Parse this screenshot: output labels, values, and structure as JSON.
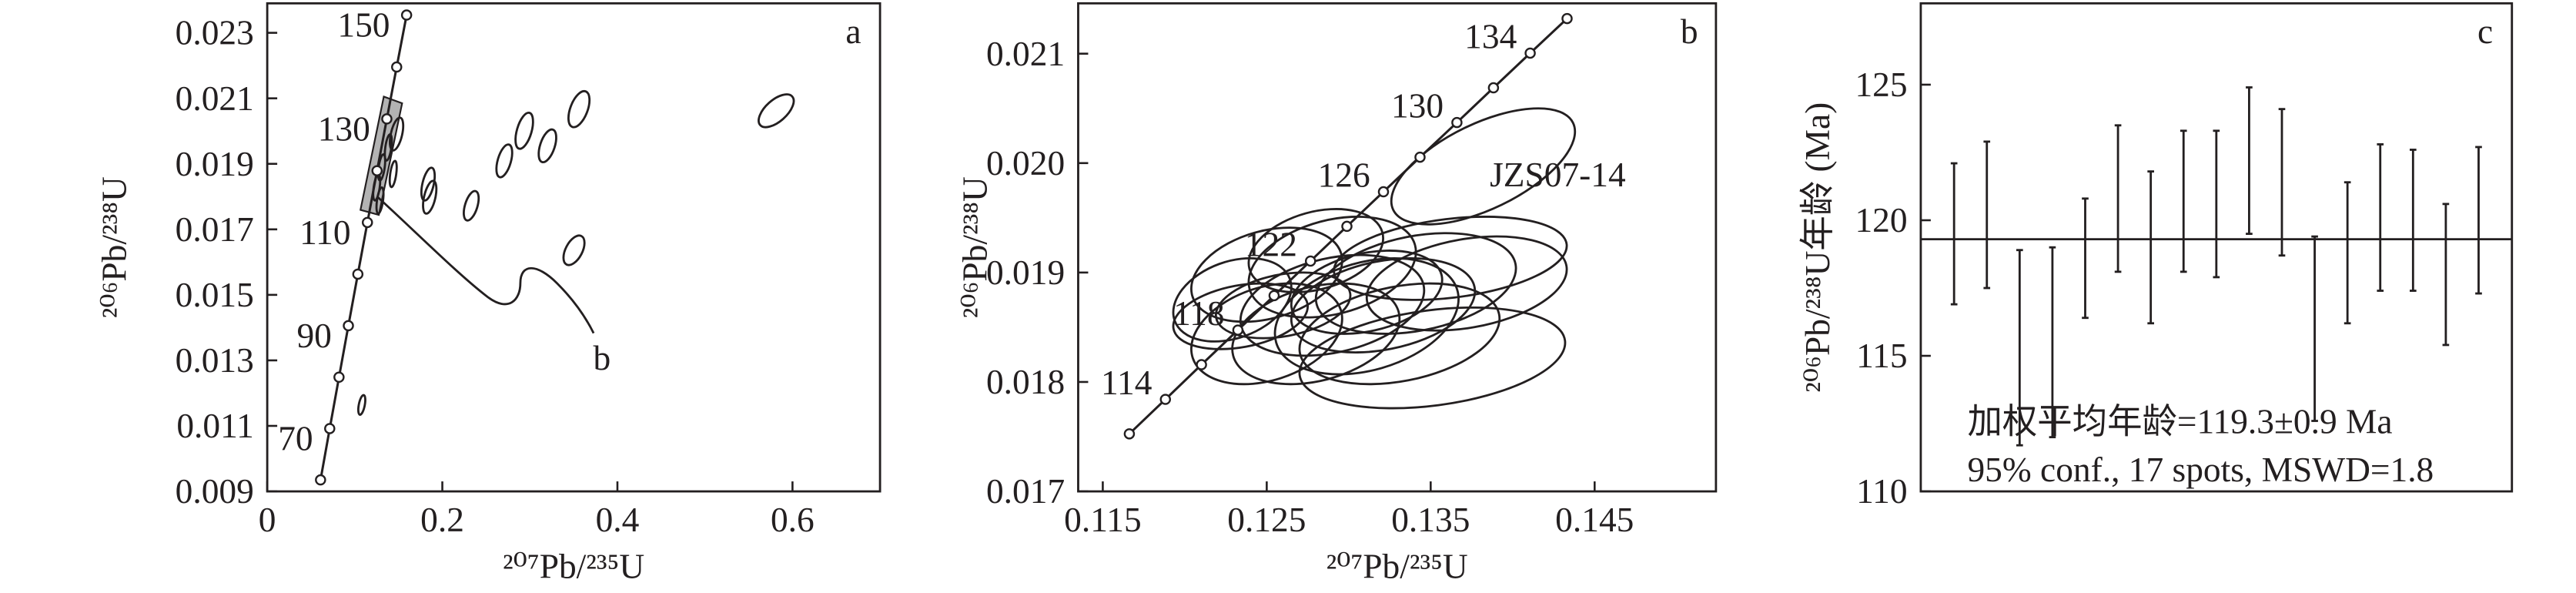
{
  "chart_data": [
    {
      "type": "concordia",
      "panel_label": "a",
      "annotation": "b",
      "xlabel": "²⁰⁷Pb/²³⁵U",
      "ylabel": "²⁰⁶Pb/²³⁸U",
      "xlim": [
        0,
        0.7
      ],
      "xticks": [
        0,
        0.2,
        0.4,
        0.6
      ],
      "ylim": [
        0.009,
        0.0239
      ],
      "yticks": [
        0.009,
        0.011,
        0.013,
        0.015,
        0.017,
        0.019,
        0.021,
        0.023
      ],
      "concordia": {
        "ages": [
          null,
          70,
          null,
          90,
          null,
          110,
          null,
          130,
          null,
          150
        ],
        "x": [
          0.06087,
          0.07137,
          0.08198,
          0.09268,
          0.1035,
          0.11442,
          0.12545,
          0.1366,
          0.14784,
          0.15919
        ],
        "values": [
          0.009351,
          0.010918,
          0.012487,
          0.014059,
          0.015633,
          0.01721,
          0.018789,
          0.020371,
          0.021955,
          0.023542
        ]
      },
      "ellipses": {
        "x": [
          0.125,
          0.1307,
          0.1383,
          0.1288,
          0.1439,
          0.1477,
          0.1837,
          0.1856,
          0.233,
          0.2708,
          0.2936,
          0.3201,
          0.3561,
          0.3504,
          0.5814,
          0.108
        ],
        "values": [
          0.01828,
          0.01889,
          0.0195,
          0.01788,
          0.01869,
          0.01991,
          0.01838,
          0.01798,
          0.01772,
          0.01909,
          0.02001,
          0.01955,
          0.02067,
          0.01636,
          0.02062,
          0.01164
        ],
        "x_err": [
          0.004,
          0.004,
          0.004,
          0.004,
          0.004,
          0.0076,
          0.0076,
          0.0076,
          0.0085,
          0.009,
          0.01,
          0.01,
          0.012,
          0.012,
          0.02,
          0.004
        ],
        "y_err": [
          0.0004,
          0.0004,
          0.0004,
          0.0004,
          0.0004,
          0.0005,
          0.0005,
          0.0005,
          0.00045,
          0.0005,
          0.00055,
          0.0005,
          0.00055,
          0.00045,
          0.0005,
          0.0003
        ],
        "rho": [
          0.5,
          0.5,
          0.5,
          0.5,
          0.5,
          0.5,
          0.5,
          0.5,
          0.5,
          0.5,
          0.5,
          0.5,
          0.5,
          0.5,
          0.6,
          0.5
        ]
      }
    },
    {
      "type": "concordia",
      "panel_label": "b",
      "sample_label": "JZS07-14",
      "xlabel": "²⁰⁷Pb/²³⁵U",
      "ylabel": "²⁰⁶Pb/²³⁸U",
      "xlim": [
        0.1135,
        0.1524
      ],
      "xticks": [
        0.115,
        0.125,
        0.135,
        0.145
      ],
      "ylim": [
        0.017,
        0.02146
      ],
      "yticks": [
        0.017,
        0.018,
        0.019,
        {
          "value": 0.02,
          "label": "0.020"
        },
        0.021
      ],
      "concordia": {
        "ages": [
          null,
          114,
          null,
          118,
          null,
          122,
          null,
          126,
          null,
          130,
          null,
          134,
          null
        ],
        "x": [
          0.11662,
          0.11882,
          0.12102,
          0.12324,
          0.12545,
          0.12767,
          0.12989,
          0.13212,
          0.13435,
          0.1366,
          0.13883,
          0.14107,
          0.14332
        ],
        "values": [
          0.017526,
          0.017841,
          0.018158,
          0.018474,
          0.018789,
          0.019105,
          0.019422,
          0.019738,
          0.020054,
          0.020371,
          0.020688,
          0.021005,
          0.021321
        ]
      },
      "ellipses": {
        "x": [
          0.1382,
          0.125,
          0.129,
          0.128,
          0.1341,
          0.1362,
          0.1372,
          0.1351,
          0.1311,
          0.128,
          0.125,
          0.1229,
          0.1234,
          0.1311,
          0.1331,
          0.129,
          0.126,
          0.1321
        ],
        "values": [
          0.01997,
          0.01898,
          0.01905,
          0.0192,
          0.0189,
          0.01913,
          0.0189,
          0.01822,
          0.0186,
          0.01844,
          0.01844,
          0.01875,
          0.0186,
          0.01882,
          0.01844,
          0.0187,
          0.0187,
          0.0187
        ],
        "x_err": [
          0.0056,
          0.0046,
          0.0051,
          0.0041,
          0.0061,
          0.0071,
          0.0061,
          0.0081,
          0.0056,
          0.0051,
          0.0046,
          0.0036,
          0.0041,
          0.0046,
          0.0061,
          0.0056,
          0.0041,
          0.0056
        ],
        "y_err": [
          0.00053,
          0.00043,
          0.00046,
          0.00038,
          0.00046,
          0.00038,
          0.00043,
          0.00046,
          0.00053,
          0.00046,
          0.00046,
          0.00038,
          0.0003,
          0.00038,
          0.00046,
          0.00046,
          0.0003,
          0.00043
        ],
        "rho": [
          0.6,
          0.3,
          0.3,
          0.3,
          0.3,
          0.3,
          0.3,
          0.3,
          0.3,
          0.3,
          0.3,
          0.3,
          0.3,
          0.3,
          0.3,
          0.3,
          0.3,
          0.3
        ]
      }
    },
    {
      "type": "weighted_mean",
      "panel_label": "c",
      "ylabel": "²⁰⁶Pb/²³⁸U年龄 (Ma)",
      "ylim": [
        110,
        128
      ],
      "yticks": [
        110,
        115,
        120,
        125
      ],
      "values": [
        119.5,
        120.2,
        115.3,
        115.5,
        118.6,
        120.8,
        119.0,
        120.7,
        120.6,
        122.2,
        121.4,
        116.0,
        118.8,
        120.1,
        120.0,
        118.0,
        120.0
      ],
      "errors": [
        2.6,
        2.7,
        3.6,
        3.5,
        2.2,
        2.7,
        2.8,
        2.6,
        2.7,
        2.7,
        2.7,
        3.4,
        2.6,
        2.7,
        2.6,
        2.6,
        2.7
      ],
      "mean": 119.3,
      "annotations": [
        "加权平均年龄=119.3±0.9 Ma",
        "95% conf., 17 spots, MSWD=1.8"
      ]
    }
  ]
}
